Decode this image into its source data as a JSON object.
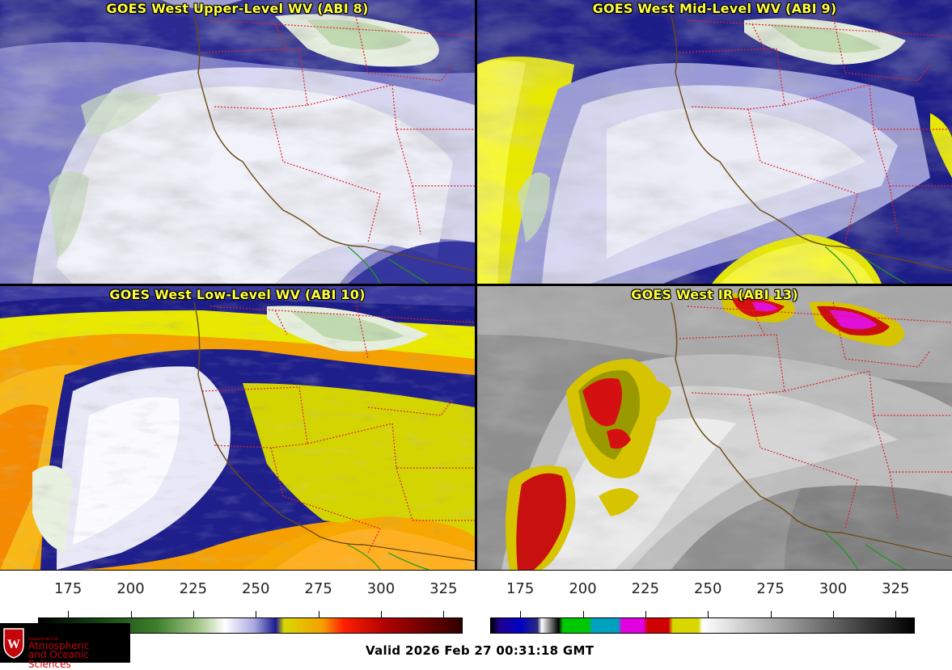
{
  "panels": [
    {
      "title": "GOES West Upper-Level WV (ABI 8)",
      "colormap": "wv"
    },
    {
      "title": "GOES West Mid-Level WV (ABI 9)",
      "colormap": "wv"
    },
    {
      "title": "GOES West Low-Level WV (ABI 10)",
      "colormap": "wv"
    },
    {
      "title": "GOES West IR (ABI 13)",
      "colormap": "ir"
    }
  ],
  "colorbars": [
    {
      "name": "water-vapor-colorbar",
      "ticks": [
        "175",
        "200",
        "225",
        "250",
        "275",
        "300",
        "325"
      ],
      "min": 163,
      "max": 332
    },
    {
      "name": "ir-colorbar",
      "ticks": [
        "175",
        "200",
        "225",
        "250",
        "275",
        "300",
        "325"
      ],
      "min": 163,
      "max": 332
    }
  ],
  "logo": {
    "dept": "Department of",
    "line1": "Atmospheric",
    "line2": "and Oceanic Sciences"
  },
  "valid_time": "Valid 2026 Feb 27 00:31:18 GMT",
  "colors": {
    "title_text": "#ffff3a",
    "state_borders": "#e0202a",
    "coastline": "#6b4a12",
    "mexico_border": "#1a9a1a"
  }
}
